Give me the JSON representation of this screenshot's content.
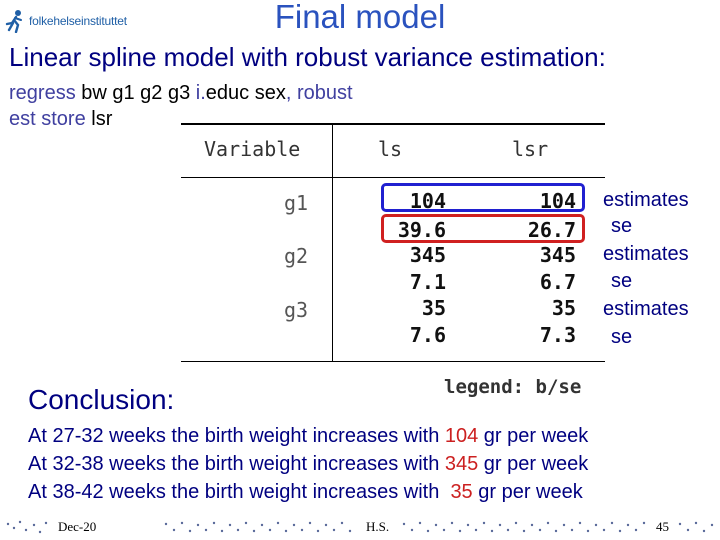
{
  "logo": {
    "text": "folkehelseinstituttet",
    "icon": "runner-icon"
  },
  "slide": {
    "title": "Final model",
    "subtitle": "Linear spline model with robust variance estimation:"
  },
  "commands": {
    "line1": {
      "kw1": "regress",
      "mid1": " bw g1 g2 g3 ",
      "kw2": "i.",
      "mid2": "educ sex",
      "kw3": ", robust"
    },
    "line2": {
      "kw1": "est store",
      "mid1": " lsr"
    }
  },
  "table": {
    "header": {
      "variable": "Variable",
      "col1": "ls",
      "col2": "lsr"
    },
    "rows": [
      {
        "label": "g1",
        "ls": "104",
        "lsr": "104"
      },
      {
        "label": "",
        "ls": "39.6",
        "lsr": "26.7"
      },
      {
        "label": "g2",
        "ls": "345",
        "lsr": "345"
      },
      {
        "label": "",
        "ls": "7.1",
        "lsr": "6.7"
      },
      {
        "label": "g3",
        "ls": "35",
        "lsr": "35"
      },
      {
        "label": "",
        "ls": "7.6",
        "lsr": "7.3"
      }
    ],
    "legend": "legend: b/se",
    "highlight_colors": {
      "estimate_box": "#2020d0",
      "se_box": "#d02020"
    }
  },
  "side_labels": [
    "estimates",
    "se",
    "estimates",
    "se",
    "estimates",
    "se"
  ],
  "conclusion": {
    "heading": "Conclusion:",
    "lines": [
      {
        "prefix": "At 27-32 weeks the birth weight increases with ",
        "value": "104",
        "suffix": " gr per week"
      },
      {
        "prefix": "At 32-38 weeks the birth weight increases with ",
        "value": "345",
        "suffix": " gr per week"
      },
      {
        "prefix": "At 38-42 weeks the birth weight increases with  ",
        "value": "35",
        "suffix": " gr per week"
      }
    ]
  },
  "footer": {
    "date": "Dec-20",
    "author": "H.S.",
    "page": "45"
  },
  "colors": {
    "title": "#2a52be",
    "text": "#000080",
    "highlight": "#cc2020",
    "keyword": "#4040a0"
  }
}
